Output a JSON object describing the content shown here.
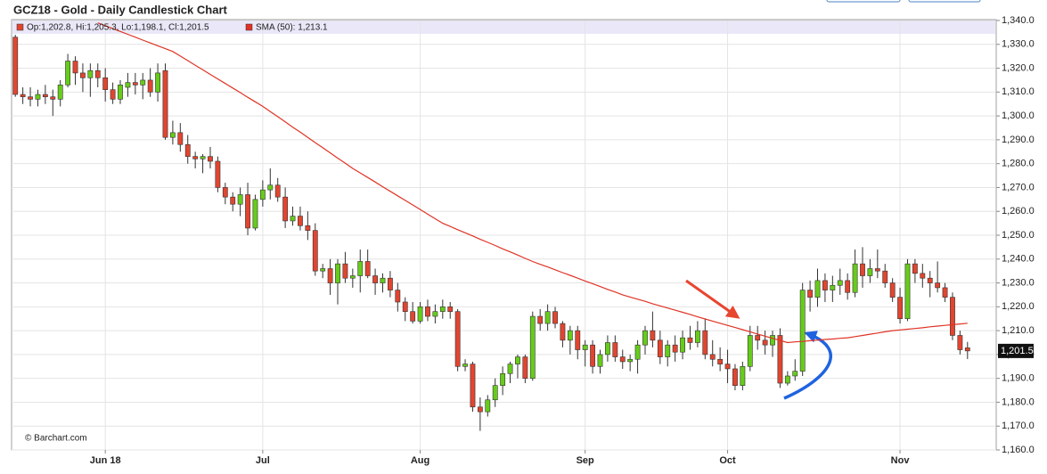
{
  "chart_data": {
    "type": "candlestick",
    "title": "GCZ18 - Gold - Daily Candlestick Chart",
    "legend": [
      "Op:1,202.8, Hi:1,205.3, Lo:1,198.1, Cl:1,201.5",
      "SMA (50): 1,213.1"
    ],
    "source": "© Barchart.com",
    "last_label": "1,201.5",
    "up_color": "#66cc1a",
    "down_color": "#e2452f",
    "grid": true,
    "categories": [
      null,
      null,
      null,
      null,
      null,
      null,
      null,
      null,
      null,
      null,
      null,
      null,
      "Jun 18",
      null,
      null,
      null,
      null,
      null,
      null,
      null,
      null,
      null,
      null,
      null,
      null,
      null,
      null,
      null,
      null,
      null,
      null,
      null,
      null,
      "Jul",
      null,
      null,
      null,
      null,
      null,
      null,
      null,
      null,
      null,
      null,
      null,
      null,
      null,
      null,
      null,
      null,
      null,
      null,
      null,
      null,
      "Aug",
      null,
      null,
      null,
      null,
      null,
      null,
      null,
      null,
      null,
      null,
      null,
      null,
      null,
      null,
      null,
      null,
      null,
      null,
      null,
      null,
      null,
      "Sep",
      null,
      null,
      null,
      null,
      null,
      null,
      null,
      null,
      null,
      null,
      null,
      null,
      null,
      null,
      null,
      null,
      null,
      null,
      "Oct",
      null,
      null,
      null,
      null,
      null,
      null,
      null,
      null,
      null,
      null,
      null,
      null,
      null,
      null,
      null,
      null,
      null,
      null,
      null,
      null,
      null,
      null,
      "Nov",
      null,
      null,
      null,
      null,
      null,
      null,
      null,
      null,
      null
    ],
    "open": [
      1333,
      1309,
      1308,
      1307,
      1309,
      1308,
      1307,
      1313,
      1323,
      1318,
      1316,
      1319,
      1316,
      1311,
      1307,
      1312,
      1314,
      1313,
      1315,
      1310,
      1319,
      1291,
      1293,
      1288,
      1283,
      1282,
      1283,
      1281,
      1270,
      1266,
      1263,
      1267,
      1253,
      1265,
      1269,
      1271,
      1266,
      1256,
      1258,
      1254,
      1252,
      1235,
      1236,
      1230,
      1238,
      1232,
      1233,
      1239,
      1233,
      1230,
      1232,
      1227,
      1222,
      1218,
      1214,
      1220,
      1216,
      1218,
      1220,
      1218,
      1195,
      1196,
      1178,
      1176,
      1181,
      1187,
      1192,
      1196,
      1199,
      1190,
      1216,
      1213,
      1218,
      1213,
      1206,
      1210,
      1202,
      1204,
      1195,
      1200,
      1205,
      1199,
      1197,
      1198,
      1204,
      1210,
      1206,
      1199,
      1204,
      1201,
      1207,
      1205,
      1210,
      1200,
      1198,
      1196,
      1194,
      1187,
      1195,
      1208,
      1206,
      1204,
      1208,
      1188,
      1191,
      1193,
      1227,
      1224,
      1231,
      1227,
      1229,
      1231,
      1226,
      1238,
      1233,
      1236,
      1235,
      1230,
      1224,
      1215,
      1238,
      1234,
      1232,
      1230,
      1228,
      1224,
      1208,
      1202.8
    ],
    "high": [
      1334,
      1312,
      1312,
      1311,
      1313,
      1311,
      1315,
      1326,
      1325,
      1322,
      1322,
      1322,
      1320,
      1314,
      1315,
      1318,
      1318,
      1318,
      1320,
      1322,
      1322,
      1298,
      1297,
      1292,
      1285,
      1284,
      1287,
      1283,
      1272,
      1268,
      1270,
      1272,
      1267,
      1273,
      1278,
      1274,
      1270,
      1262,
      1262,
      1260,
      1255,
      1238,
      1240,
      1240,
      1243,
      1236,
      1244,
      1244,
      1236,
      1234,
      1235,
      1230,
      1224,
      1222,
      1222,
      1223,
      1221,
      1223,
      1222,
      1219,
      1198,
      1197,
      1182,
      1183,
      1190,
      1195,
      1197,
      1200,
      1200,
      1218,
      1219,
      1221,
      1220,
      1214,
      1212,
      1212,
      1206,
      1206,
      1202,
      1208,
      1208,
      1202,
      1200,
      1206,
      1212,
      1218,
      1210,
      1206,
      1208,
      1210,
      1212,
      1214,
      1215,
      1206,
      1203,
      1202,
      1196,
      1197,
      1212,
      1212,
      1210,
      1210,
      1211,
      1193,
      1198,
      1230,
      1231,
      1236,
      1234,
      1233,
      1236,
      1234,
      1244,
      1245,
      1240,
      1244,
      1238,
      1232,
      1228,
      1240,
      1240,
      1238,
      1235,
      1239,
      1230,
      1226,
      1210,
      1205.3
    ],
    "low": [
      1308,
      1305,
      1304,
      1304,
      1305,
      1300,
      1304,
      1312,
      1313,
      1310,
      1308,
      1312,
      1306,
      1305,
      1305,
      1308,
      1309,
      1307,
      1308,
      1306,
      1290,
      1288,
      1285,
      1280,
      1278,
      1276,
      1278,
      1268,
      1263,
      1260,
      1258,
      1250,
      1252,
      1262,
      1265,
      1264,
      1253,
      1254,
      1252,
      1248,
      1233,
      1232,
      1225,
      1221,
      1230,
      1228,
      1226,
      1232,
      1225,
      1226,
      1224,
      1218,
      1214,
      1213,
      1213,
      1214,
      1213,
      1215,
      1215,
      1193,
      1193,
      1176,
      1168,
      1174,
      1178,
      1183,
      1188,
      1190,
      1188,
      1189,
      1210,
      1210,
      1211,
      1203,
      1200,
      1198,
      1195,
      1192,
      1192,
      1197,
      1197,
      1194,
      1193,
      1192,
      1200,
      1203,
      1196,
      1195,
      1197,
      1198,
      1202,
      1203,
      1198,
      1195,
      1193,
      1188,
      1185,
      1185,
      1193,
      1202,
      1200,
      1199,
      1186,
      1187,
      1189,
      1191,
      1218,
      1220,
      1222,
      1222,
      1225,
      1223,
      1224,
      1228,
      1230,
      1232,
      1228,
      1222,
      1213,
      1214,
      1230,
      1228,
      1224,
      1226,
      1222,
      1206,
      1200,
      1198.1
    ],
    "close": [
      1309,
      1308,
      1307,
      1309,
      1308,
      1307,
      1313,
      1323,
      1318,
      1316,
      1319,
      1316,
      1311,
      1307,
      1313,
      1314,
      1313,
      1315,
      1310,
      1318,
      1291,
      1293,
      1288,
      1283,
      1282,
      1283,
      1281,
      1270,
      1266,
      1263,
      1267,
      1253,
      1265,
      1269,
      1271,
      1266,
      1256,
      1258,
      1254,
      1252,
      1235,
      1236,
      1230,
      1238,
      1232,
      1233,
      1239,
      1233,
      1230,
      1232,
      1227,
      1222,
      1218,
      1214,
      1220,
      1216,
      1218,
      1220,
      1218,
      1195,
      1196,
      1178,
      1176,
      1181,
      1187,
      1192,
      1196,
      1199,
      1190,
      1216,
      1213,
      1218,
      1213,
      1206,
      1210,
      1202,
      1204,
      1195,
      1200,
      1205,
      1199,
      1197,
      1198,
      1204,
      1210,
      1206,
      1199,
      1204,
      1201,
      1207,
      1205,
      1210,
      1200,
      1198,
      1196,
      1194,
      1187,
      1195,
      1208,
      1206,
      1204,
      1208,
      1188,
      1191,
      1193,
      1227,
      1224,
      1231,
      1227,
      1229,
      1231,
      1226,
      1238,
      1233,
      1236,
      1235,
      1230,
      1224,
      1215,
      1238,
      1234,
      1232,
      1230,
      1228,
      1224,
      1208,
      1202,
      1201.5
    ],
    "sma": {
      "color": "#e03325",
      "values": [
        null,
        null,
        null,
        null,
        null,
        null,
        null,
        null,
        null,
        null,
        null,
        1339,
        1337.8,
        1336.6,
        1335.4,
        1334.2,
        1333,
        1331.8,
        1330.6,
        1329.4,
        1328.2,
        1327,
        1325.1,
        1323.2,
        1321.2,
        1319.3,
        1317.4,
        1315.5,
        1313.6,
        1311.7,
        1309.8,
        1307.8,
        1305.9,
        1304,
        1301.8,
        1299.7,
        1297.5,
        1295.3,
        1293.2,
        1291,
        1288.8,
        1286.7,
        1284.5,
        1282.3,
        1280.2,
        1278,
        1276.1,
        1274.2,
        1272.3,
        1270.3,
        1268.4,
        1266.5,
        1264.6,
        1262.7,
        1260.8,
        1258.8,
        1256.9,
        1255,
        1253.7,
        1252.3,
        1251,
        1249.7,
        1248.3,
        1247,
        1245.7,
        1244.3,
        1243,
        1241.7,
        1240.3,
        1239,
        1237.8,
        1236.7,
        1235.5,
        1234.3,
        1233.2,
        1232,
        1230.8,
        1229.7,
        1228.5,
        1227.3,
        1226.2,
        1225,
        1224.1,
        1223.2,
        1222.3,
        1221.3,
        1220.4,
        1219.5,
        1218.6,
        1217.7,
        1216.8,
        1215.8,
        1214.9,
        1214,
        1213.1,
        1212.2,
        1211.3,
        1210.4,
        1209.5,
        1208.6,
        1207.7,
        1206.8,
        1205.9,
        1205,
        1205.3,
        1205.5,
        1205.8,
        1206,
        1206.3,
        1206.5,
        1206.8,
        1207,
        1207.5,
        1208,
        1208.5,
        1209,
        1209.5,
        1210,
        1210.3,
        1210.6,
        1210.9,
        1211.2,
        1211.6,
        1211.9,
        1212.2,
        1212.5,
        1212.8,
        1213.1
      ]
    },
    "ylim": [
      1160,
      1340
    ],
    "yticks": [
      {
        "value": 1160,
        "label": "1,160.0"
      },
      {
        "value": 1170,
        "label": "1,170.0"
      },
      {
        "value": 1180,
        "label": "1,180.0"
      },
      {
        "value": 1190,
        "label": "1,190.0"
      },
      {
        "value": 1200,
        "label": "1,200.0"
      },
      {
        "value": 1210,
        "label": "1,210.0"
      },
      {
        "value": 1220,
        "label": "1,220.0"
      },
      {
        "value": 1230,
        "label": "1,230.0"
      },
      {
        "value": 1240,
        "label": "1,240.0"
      },
      {
        "value": 1250,
        "label": "1,250.0"
      },
      {
        "value": 1260,
        "label": "1,260.0"
      },
      {
        "value": 1270,
        "label": "1,270.0"
      },
      {
        "value": 1280,
        "label": "1,280.0"
      },
      {
        "value": 1290,
        "label": "1,290.0"
      },
      {
        "value": 1300,
        "label": "1,300.0"
      },
      {
        "value": 1310,
        "label": "1,310.0"
      },
      {
        "value": 1320,
        "label": "1,320.0"
      },
      {
        "value": 1330,
        "label": "1,330.0"
      },
      {
        "value": 1340,
        "label": "1,340.0"
      }
    ]
  }
}
